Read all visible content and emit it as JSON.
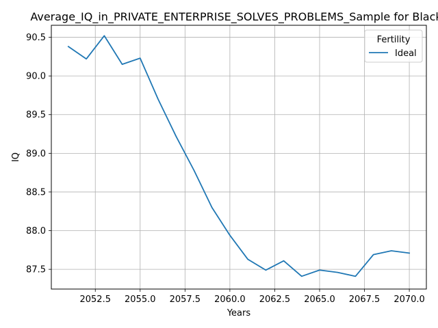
{
  "chart_data": {
    "type": "line",
    "title": "Average_IQ_in_PRIVATE_ENTERPRISE_SOLVES_PROBLEMS_Sample for Black_",
    "xlabel": "Years",
    "ylabel": "IQ",
    "xlim": [
      2050.05,
      2070.95
    ],
    "ylim": [
      87.245,
      90.655
    ],
    "x_ticks": [
      2052.5,
      2055.0,
      2057.5,
      2060.0,
      2062.5,
      2065.0,
      2067.5,
      2070.0
    ],
    "x_tick_labels": [
      "2052.5",
      "2055.0",
      "2057.5",
      "2060.0",
      "2062.5",
      "2065.0",
      "2067.5",
      "2070.0"
    ],
    "y_ticks": [
      87.5,
      88.0,
      88.5,
      89.0,
      89.5,
      90.0,
      90.5
    ],
    "y_tick_labels": [
      "87.5",
      "88.0",
      "88.5",
      "89.0",
      "89.5",
      "90.0",
      "90.5"
    ],
    "grid": true,
    "legend": {
      "title": "Fertility",
      "placement": "top-right"
    },
    "series": [
      {
        "name": "Ideal",
        "color": "#1f77b4",
        "x": [
          2051,
          2052,
          2053,
          2054,
          2055,
          2056,
          2057,
          2058,
          2059,
          2060,
          2061,
          2062,
          2063,
          2064,
          2065,
          2066,
          2067,
          2068,
          2069,
          2070
        ],
        "y": [
          90.38,
          90.22,
          90.52,
          90.15,
          90.23,
          89.7,
          89.22,
          88.78,
          88.3,
          87.94,
          87.63,
          87.49,
          87.61,
          87.41,
          87.49,
          87.46,
          87.41,
          87.69,
          87.74,
          87.71
        ]
      }
    ]
  }
}
